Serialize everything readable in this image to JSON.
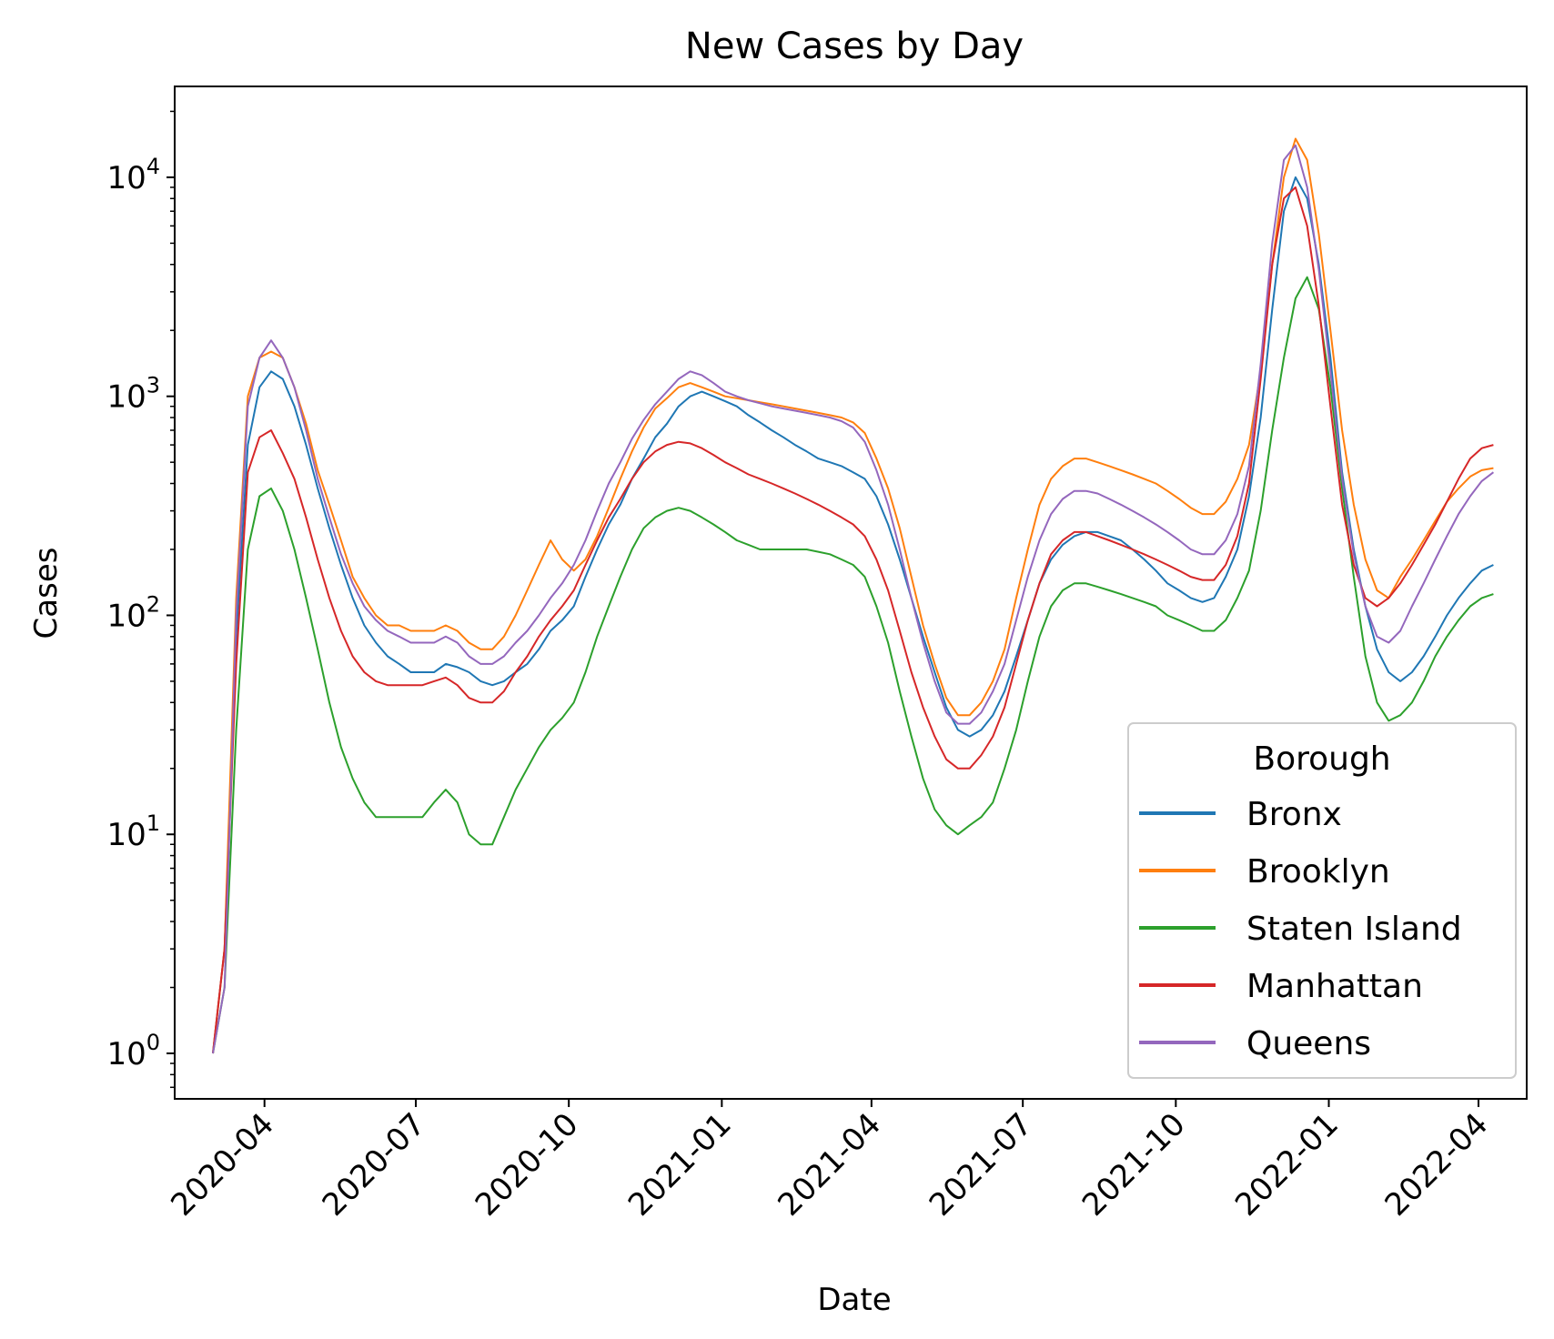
{
  "chart_data": {
    "type": "line",
    "title": "New Cases by Day",
    "xlabel": "Date",
    "ylabel": "Cases",
    "yscale": "log",
    "ylim": [
      0.62,
      26000
    ],
    "xlim": [
      "2020-02-07",
      "2022-04-30"
    ],
    "x_ticks": [
      "2020-04",
      "2020-07",
      "2020-10",
      "2021-01",
      "2021-04",
      "2021-07",
      "2021-10",
      "2022-01",
      "2022-04"
    ],
    "y_ticks": [
      {
        "base": "10",
        "exp": "0"
      },
      {
        "base": "10",
        "exp": "1"
      },
      {
        "base": "10",
        "exp": "2"
      },
      {
        "base": "10",
        "exp": "3"
      },
      {
        "base": "10",
        "exp": "4"
      }
    ],
    "legend": {
      "title": "Borough",
      "placement": "lower-right"
    },
    "grid": false,
    "x_dates": [
      "2020-03-01",
      "2020-03-08",
      "2020-03-15",
      "2020-03-22",
      "2020-03-29",
      "2020-04-05",
      "2020-04-12",
      "2020-04-19",
      "2020-04-26",
      "2020-05-03",
      "2020-05-10",
      "2020-05-17",
      "2020-05-24",
      "2020-05-31",
      "2020-06-07",
      "2020-06-14",
      "2020-06-21",
      "2020-06-28",
      "2020-07-05",
      "2020-07-12",
      "2020-07-19",
      "2020-07-26",
      "2020-08-02",
      "2020-08-09",
      "2020-08-16",
      "2020-08-23",
      "2020-08-30",
      "2020-09-06",
      "2020-09-13",
      "2020-09-20",
      "2020-09-27",
      "2020-10-04",
      "2020-10-11",
      "2020-10-18",
      "2020-10-25",
      "2020-11-01",
      "2020-11-08",
      "2020-11-15",
      "2020-11-22",
      "2020-11-29",
      "2020-12-06",
      "2020-12-13",
      "2020-12-20",
      "2020-12-27",
      "2021-01-03",
      "2021-01-10",
      "2021-01-17",
      "2021-01-24",
      "2021-01-31",
      "2021-02-07",
      "2021-02-14",
      "2021-02-21",
      "2021-02-28",
      "2021-03-07",
      "2021-03-14",
      "2021-03-21",
      "2021-03-28",
      "2021-04-04",
      "2021-04-11",
      "2021-04-18",
      "2021-04-25",
      "2021-05-02",
      "2021-05-09",
      "2021-05-16",
      "2021-05-23",
      "2021-05-30",
      "2021-06-06",
      "2021-06-13",
      "2021-06-20",
      "2021-06-27",
      "2021-07-04",
      "2021-07-11",
      "2021-07-18",
      "2021-07-25",
      "2021-08-01",
      "2021-08-08",
      "2021-08-15",
      "2021-08-22",
      "2021-08-29",
      "2021-09-05",
      "2021-09-12",
      "2021-09-19",
      "2021-09-26",
      "2021-10-03",
      "2021-10-10",
      "2021-10-17",
      "2021-10-24",
      "2021-10-31",
      "2021-11-07",
      "2021-11-14",
      "2021-11-21",
      "2021-11-28",
      "2021-12-05",
      "2021-12-12",
      "2021-12-19",
      "2021-12-26",
      "2022-01-02",
      "2022-01-09",
      "2022-01-16",
      "2022-01-23",
      "2022-01-30",
      "2022-02-06",
      "2022-02-13",
      "2022-02-20",
      "2022-02-27",
      "2022-03-06",
      "2022-03-13",
      "2022-03-20",
      "2022-03-27",
      "2022-04-03",
      "2022-04-10",
      "2022-04-17",
      "2022-04-24"
    ],
    "series": [
      {
        "name": "Bronx",
        "color": "#1f77b4",
        "values": [
          1,
          3,
          80,
          600,
          1100,
          1300,
          1200,
          900,
          600,
          380,
          250,
          170,
          120,
          90,
          75,
          65,
          60,
          55,
          55,
          55,
          60,
          58,
          55,
          50,
          48,
          50,
          55,
          60,
          70,
          85,
          95,
          110,
          150,
          200,
          260,
          320,
          420,
          520,
          650,
          750,
          900,
          1000,
          1050,
          1000,
          950,
          900,
          820,
          760,
          700,
          650,
          600,
          560,
          520,
          500,
          480,
          450,
          420,
          350,
          260,
          180,
          120,
          80,
          55,
          38,
          30,
          28,
          30,
          35,
          45,
          65,
          95,
          140,
          180,
          210,
          230,
          240,
          240,
          230,
          220,
          200,
          180,
          160,
          140,
          130,
          120,
          115,
          120,
          150,
          200,
          350,
          800,
          2500,
          7000,
          10000,
          8000,
          4000,
          1500,
          450,
          200,
          110,
          70,
          55,
          50,
          55,
          65,
          80,
          100,
          120,
          140,
          160,
          170
        ]
      },
      {
        "name": "Brooklyn",
        "color": "#ff7f0e",
        "values": [
          1,
          3,
          120,
          1000,
          1500,
          1600,
          1500,
          1100,
          750,
          460,
          320,
          220,
          150,
          120,
          100,
          90,
          90,
          85,
          85,
          85,
          90,
          85,
          75,
          70,
          70,
          80,
          100,
          130,
          170,
          220,
          180,
          160,
          180,
          230,
          310,
          420,
          560,
          720,
          880,
          980,
          1100,
          1150,
          1100,
          1050,
          1000,
          980,
          960,
          940,
          920,
          900,
          880,
          860,
          840,
          820,
          800,
          760,
          680,
          520,
          380,
          250,
          150,
          90,
          60,
          42,
          35,
          35,
          40,
          50,
          70,
          120,
          200,
          320,
          420,
          480,
          520,
          520,
          500,
          480,
          460,
          440,
          420,
          400,
          370,
          340,
          310,
          290,
          290,
          330,
          420,
          600,
          1300,
          4000,
          10000,
          15000,
          12000,
          5500,
          2000,
          700,
          320,
          180,
          130,
          120,
          150,
          180,
          220,
          270,
          330,
          380,
          430,
          460,
          470
        ]
      },
      {
        "name": "Staten Island",
        "color": "#2ca02c",
        "values": [
          1,
          2,
          30,
          200,
          350,
          380,
          300,
          200,
          120,
          70,
          40,
          25,
          18,
          14,
          12,
          12,
          12,
          12,
          12,
          14,
          16,
          14,
          10,
          9,
          9,
          12,
          16,
          20,
          25,
          30,
          34,
          40,
          55,
          80,
          110,
          150,
          200,
          250,
          280,
          300,
          310,
          300,
          280,
          260,
          240,
          220,
          210,
          200,
          200,
          200,
          200,
          200,
          195,
          190,
          180,
          170,
          150,
          110,
          75,
          45,
          28,
          18,
          13,
          11,
          10,
          11,
          12,
          14,
          20,
          30,
          50,
          80,
          110,
          130,
          140,
          140,
          135,
          130,
          125,
          120,
          115,
          110,
          100,
          95,
          90,
          85,
          85,
          95,
          120,
          160,
          300,
          700,
          1500,
          2800,
          3500,
          2500,
          1100,
          380,
          150,
          65,
          40,
          33,
          35,
          40,
          50,
          65,
          80,
          95,
          110,
          120,
          125
        ]
      },
      {
        "name": "Manhattan",
        "color": "#d62728",
        "values": [
          1,
          3,
          60,
          450,
          650,
          700,
          550,
          420,
          280,
          180,
          120,
          85,
          65,
          55,
          50,
          48,
          48,
          48,
          48,
          50,
          52,
          48,
          42,
          40,
          40,
          45,
          55,
          65,
          80,
          95,
          110,
          130,
          170,
          220,
          280,
          340,
          420,
          500,
          560,
          600,
          620,
          610,
          580,
          540,
          500,
          470,
          440,
          420,
          400,
          380,
          360,
          340,
          320,
          300,
          280,
          260,
          230,
          180,
          130,
          85,
          55,
          38,
          28,
          22,
          20,
          20,
          23,
          28,
          38,
          60,
          95,
          140,
          190,
          220,
          240,
          240,
          230,
          220,
          210,
          200,
          190,
          180,
          170,
          160,
          150,
          145,
          145,
          170,
          230,
          400,
          1200,
          4000,
          8000,
          9000,
          6000,
          2600,
          900,
          320,
          170,
          120,
          110,
          120,
          140,
          170,
          210,
          260,
          330,
          420,
          520,
          580,
          600
        ]
      },
      {
        "name": "Queens",
        "color": "#9467bd",
        "values": [
          1,
          2,
          100,
          900,
          1500,
          1800,
          1500,
          1100,
          700,
          420,
          280,
          190,
          140,
          110,
          95,
          85,
          80,
          75,
          75,
          75,
          80,
          75,
          65,
          60,
          60,
          65,
          75,
          85,
          100,
          120,
          140,
          170,
          220,
          300,
          400,
          500,
          640,
          780,
          920,
          1050,
          1200,
          1300,
          1250,
          1150,
          1050,
          1000,
          960,
          930,
          900,
          880,
          860,
          840,
          820,
          800,
          770,
          720,
          620,
          460,
          320,
          200,
          120,
          75,
          50,
          36,
          32,
          32,
          36,
          45,
          60,
          95,
          150,
          220,
          290,
          340,
          370,
          370,
          360,
          340,
          320,
          300,
          280,
          260,
          240,
          220,
          200,
          190,
          190,
          220,
          290,
          480,
          1400,
          5000,
          12000,
          14000,
          9000,
          3800,
          1300,
          420,
          190,
          110,
          80,
          75,
          85,
          110,
          140,
          180,
          230,
          290,
          350,
          410,
          450
        ]
      }
    ]
  }
}
